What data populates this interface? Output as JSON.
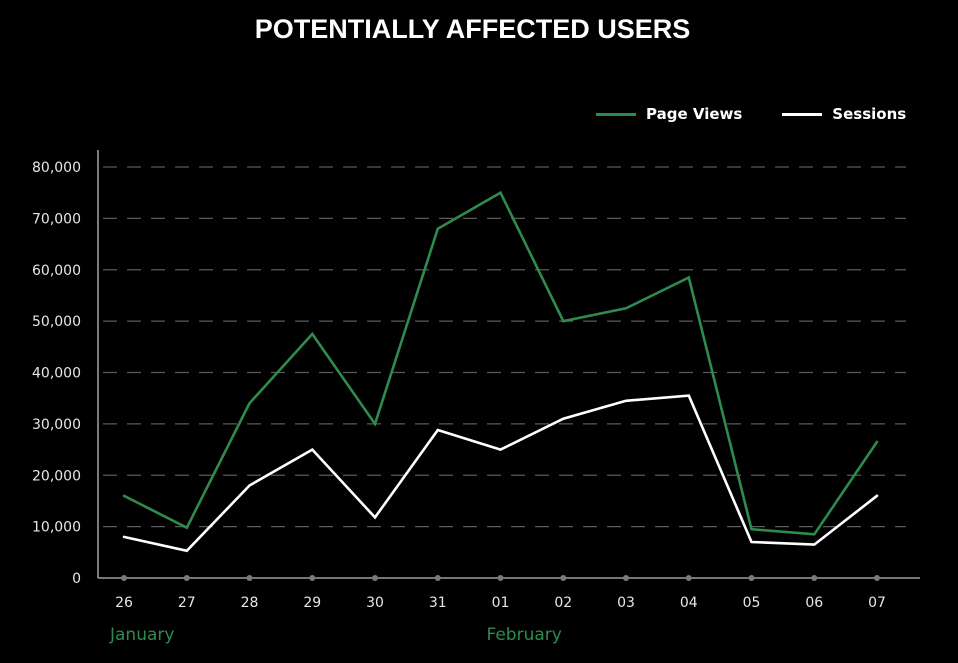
{
  "chart_data": {
    "type": "line",
    "title": "POTENTIALLY AFFECTED USERS",
    "categories": [
      "26",
      "27",
      "28",
      "29",
      "30",
      "31",
      "01",
      "02",
      "03",
      "04",
      "05",
      "06",
      "07"
    ],
    "month_labels": [
      {
        "label": "January",
        "category_index": 0
      },
      {
        "label": "February",
        "category_index": 6
      }
    ],
    "series": [
      {
        "name": "Page Views",
        "color": "#2e8b4e",
        "values": [
          16000,
          9800,
          34000,
          47500,
          30000,
          68000,
          75000,
          50000,
          52500,
          58500,
          9500,
          8500,
          26500
        ]
      },
      {
        "name": "Sessions",
        "color": "#ffffff",
        "values": [
          8000,
          5300,
          18000,
          25000,
          11800,
          28800,
          25000,
          31000,
          34500,
          35500,
          7000,
          6500,
          16000
        ]
      }
    ],
    "y_ticks": [
      "0",
      "10,000",
      "20,000",
      "30,000",
      "40,000",
      "50,000",
      "60,000",
      "70,000",
      "80,000"
    ],
    "ylim": [
      0,
      80000
    ],
    "grid": "horizontal-dashed",
    "legend_position": "top-right",
    "xlabel": "",
    "ylabel": "",
    "colors": {
      "background": "#000000",
      "grid": "#5a5a5a",
      "axis": "#bdbdbd",
      "month_label": "#2e8b4e",
      "tick_dot": "#7a7a7a"
    }
  }
}
